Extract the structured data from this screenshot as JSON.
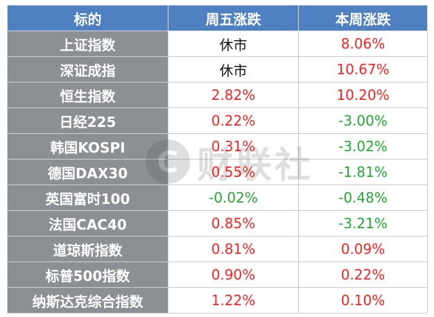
{
  "table": {
    "headers": [
      "标的",
      "周五涨跌",
      "本周涨跌"
    ],
    "rows": [
      {
        "name": "上证指数",
        "friday": "休市",
        "week": "8.06%"
      },
      {
        "name": "深证成指",
        "friday": "休市",
        "week": "10.67%"
      },
      {
        "name": "恒生指数",
        "friday": "2.82%",
        "week": "10.20%"
      },
      {
        "name": "日经225",
        "friday": "0.22%",
        "week": "-3.00%"
      },
      {
        "name": "韩国KOSPI",
        "friday": "0.31%",
        "week": "-3.02%"
      },
      {
        "name": "德国DAX30",
        "friday": "0.55%",
        "week": "-1.81%"
      },
      {
        "name": "英国富时100",
        "friday": "-0.02%",
        "week": "-0.48%"
      },
      {
        "name": "法国CAC40",
        "friday": "0.85%",
        "week": "-3.21%"
      },
      {
        "name": "道琼斯指数",
        "friday": "0.81%",
        "week": "0.09%"
      },
      {
        "name": "标普500指数",
        "friday": "0.90%",
        "week": "0.22%"
      },
      {
        "name": "纳斯达克综合指数",
        "friday": "1.22%",
        "week": "0.10%"
      }
    ]
  },
  "watermark": {
    "logo_letter": "C",
    "text": "财联社"
  },
  "colors": {
    "header_bg": "#4f80c2",
    "name_bg": "#8c9095",
    "positive": "#ff2222",
    "negative": "#22aa33",
    "neutral": "#111111"
  }
}
